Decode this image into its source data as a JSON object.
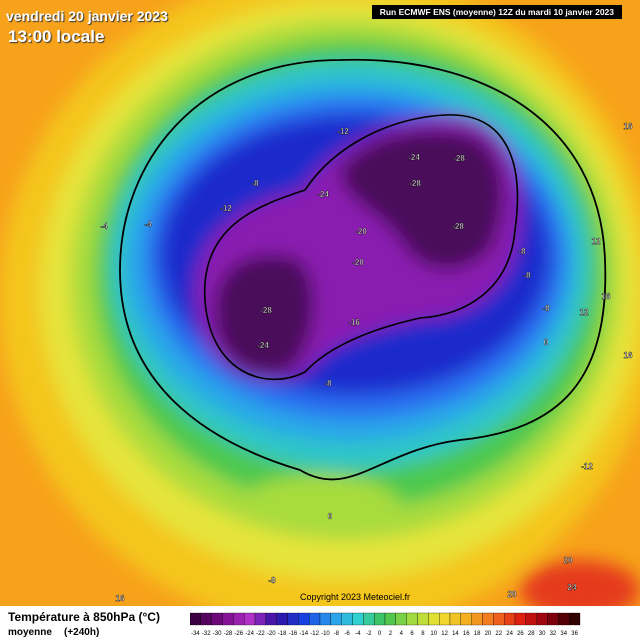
{
  "header": {
    "date": "vendredi 20 janvier 2023",
    "time": "13:00 locale",
    "run": "Run ECMWF ENS (moyenne) 12Z du mardi 10 janvier 2023"
  },
  "map": {
    "copyright": "Copyright 2023 Meteociel.fr",
    "labels": [
      -12,
      -8,
      -12,
      -4,
      -4,
      -24,
      -28,
      -28,
      -24,
      -20,
      -20,
      -28,
      -28,
      -24,
      -16,
      -8,
      -8,
      -8,
      -8,
      0,
      12,
      16,
      12,
      0,
      -12,
      20,
      24,
      20,
      -8,
      16,
      16,
      16
    ]
  },
  "legend": {
    "title": "Température à 850hPa (°C)",
    "subtitle": "moyenne",
    "lead": "(+240h)",
    "ticks": [
      -34,
      -32,
      -30,
      -28,
      -26,
      -24,
      -22,
      -20,
      -18,
      -16,
      -14,
      -12,
      -10,
      -8,
      -6,
      -4,
      -2,
      0,
      2,
      4,
      6,
      8,
      10,
      12,
      14,
      16,
      18,
      20,
      22,
      24,
      26,
      28,
      30,
      32,
      34,
      36
    ]
  }
}
